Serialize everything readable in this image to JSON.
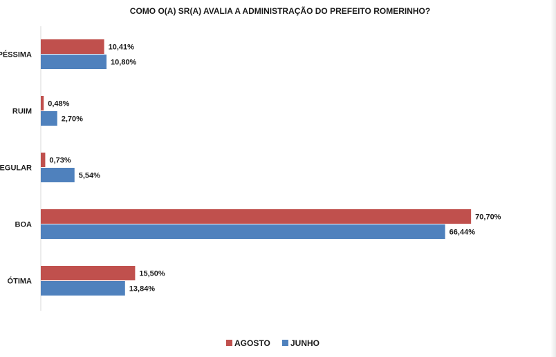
{
  "chart_data": {
    "type": "bar",
    "orientation": "horizontal",
    "title": "COMO O(A) SR(A) AVALIA A ADMINISTRAÇÃO DO PREFEITO ROMERINHO?",
    "categories": [
      "PÉSSIMA",
      "RUIM",
      "REGULAR",
      "BOA",
      "ÓTIMA"
    ],
    "series": [
      {
        "name": "AGOSTO",
        "color": "#c0504d",
        "values": [
          10.41,
          0.48,
          0.73,
          70.7,
          15.5
        ],
        "labels": [
          "10,41%",
          "0,48%",
          "0,73%",
          "70,70%",
          "15,50%"
        ]
      },
      {
        "name": "JUNHO",
        "color": "#4f81bd",
        "values": [
          10.8,
          2.7,
          5.54,
          66.44,
          13.84
        ],
        "labels": [
          "10,80%",
          "2,70%",
          "5,54%",
          "66,44%",
          "13,84%"
        ]
      }
    ],
    "xlim": [
      0,
      72
    ],
    "grid": false,
    "legend": "bottom-center"
  }
}
